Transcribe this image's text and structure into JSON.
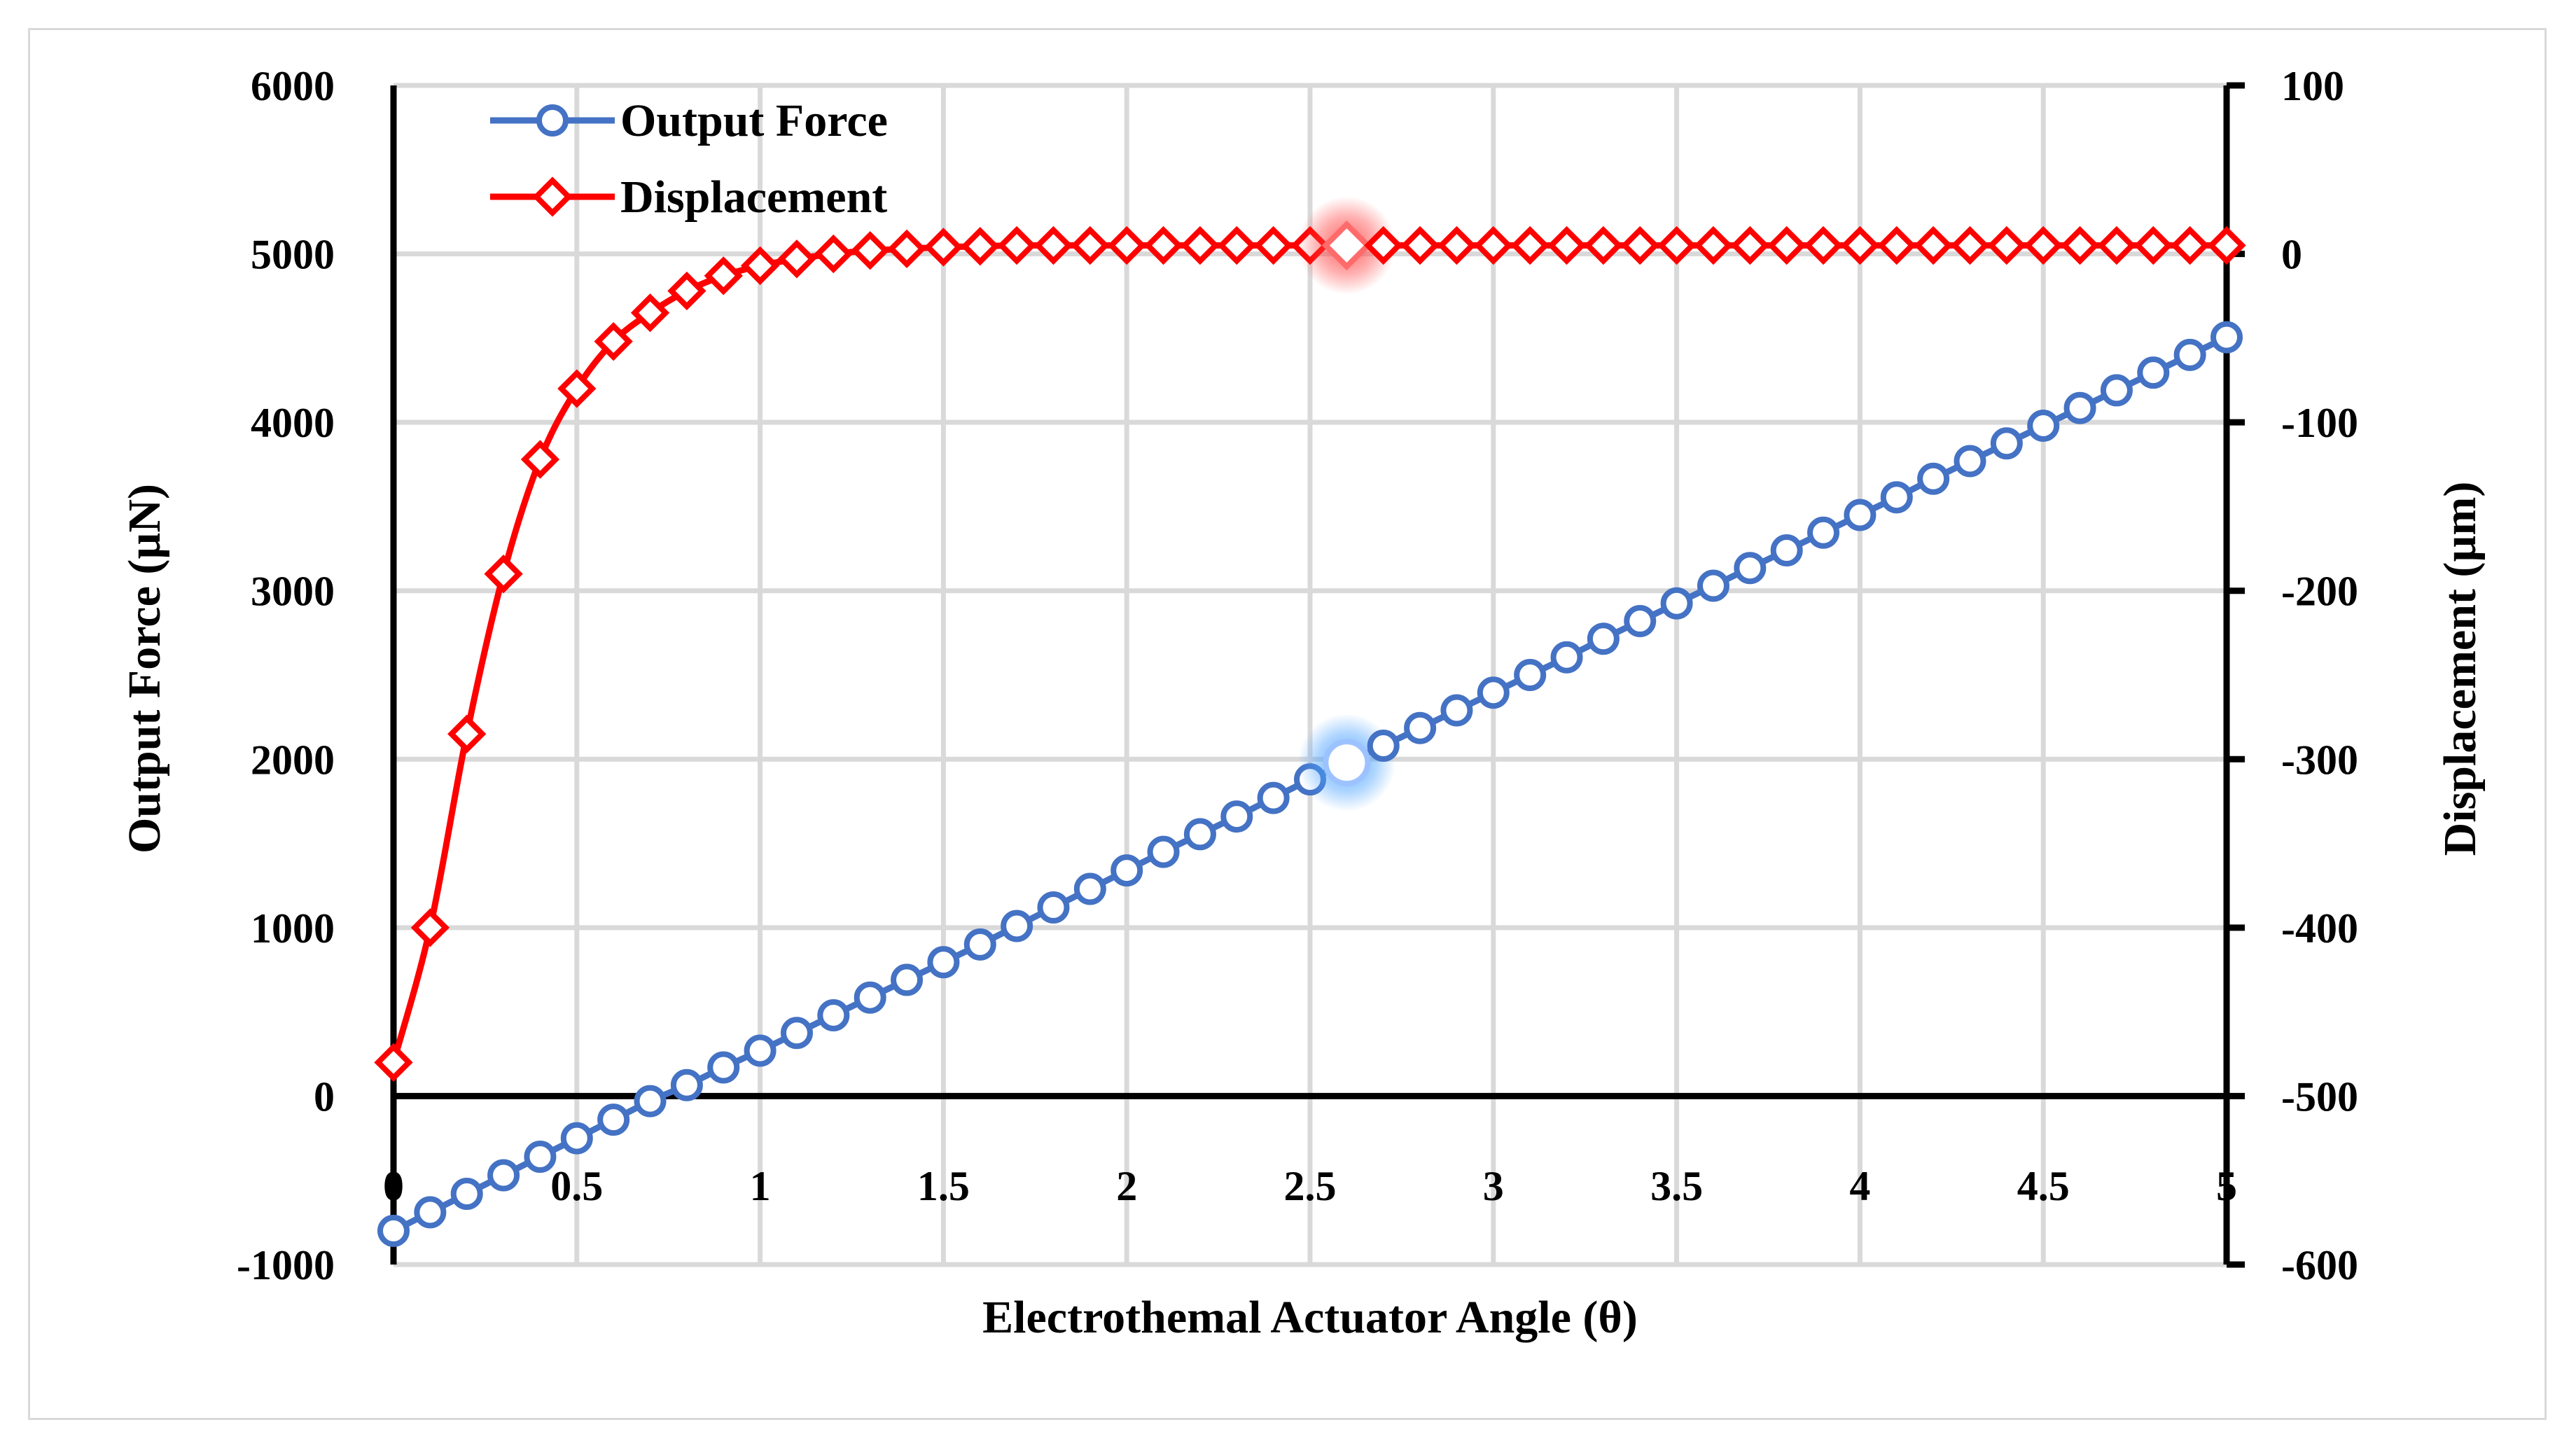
{
  "chart_data": {
    "type": "line",
    "title": "",
    "xlabel": "Electrothemal Actuator Angle (θ)",
    "ylabel": "Output Force (µN)",
    "y2label": "Displacement (µm)",
    "xlim": [
      0,
      5
    ],
    "ylim": [
      -1000,
      6000
    ],
    "y2lim": [
      -600,
      100
    ],
    "x_ticks": [
      "0",
      "0.5",
      "1",
      "1.5",
      "2",
      "2.5",
      "3",
      "3.5",
      "4",
      "4.5",
      "5"
    ],
    "y_ticks": [
      "-1000",
      "0",
      "1000",
      "2000",
      "3000",
      "4000",
      "5000",
      "6000"
    ],
    "y2_ticks": [
      "-600",
      "-500",
      "-400",
      "-300",
      "-200",
      "-100",
      "0",
      "100"
    ],
    "grid": true,
    "legend_position": "top-left",
    "x": [
      0,
      0.1,
      0.2,
      0.3,
      0.4,
      0.5,
      0.6,
      0.7,
      0.8,
      0.9,
      1.0,
      1.1,
      1.2,
      1.3,
      1.4,
      1.5,
      1.6,
      1.7,
      1.8,
      1.9,
      2.0,
      2.1,
      2.2,
      2.3,
      2.4,
      2.5,
      2.6,
      2.7,
      2.8,
      2.9,
      3.0,
      3.1,
      3.2,
      3.3,
      3.4,
      3.5,
      3.6,
      3.7,
      3.8,
      3.9,
      4.0,
      4.1,
      4.2,
      4.3,
      4.4,
      4.5,
      4.6,
      4.7,
      4.8,
      4.9,
      5.0
    ],
    "series": [
      {
        "name": "Output Force",
        "axis": "left",
        "color": "#4472c4",
        "marker": "circle",
        "values": [
          -800,
          -690,
          -580,
          -470,
          -360,
          -250,
          -140,
          -30,
          65,
          170,
          270,
          375,
          480,
          585,
          690,
          795,
          900,
          1010,
          1120,
          1230,
          1340,
          1450,
          1555,
          1660,
          1770,
          1880,
          1980,
          2080,
          2185,
          2290,
          2395,
          2500,
          2605,
          2715,
          2820,
          2925,
          3030,
          3135,
          3240,
          3345,
          3450,
          3555,
          3665,
          3770,
          3875,
          3980,
          4085,
          4190,
          4295,
          4400,
          4505
        ],
        "highlight_index": 26
      },
      {
        "name": "Displacement",
        "axis": "right",
        "color": "#ff0000",
        "marker": "diamond",
        "values": [
          -480,
          -400,
          -285,
          -190,
          -122,
          -80,
          -52,
          -35,
          -22,
          -13,
          -7,
          -3,
          0,
          2,
          3,
          4,
          4.5,
          5,
          5,
          5,
          5,
          5,
          5,
          5,
          5,
          5,
          5,
          5,
          5,
          5,
          5,
          5,
          5,
          5,
          5,
          5,
          5,
          5,
          5,
          5,
          5,
          5,
          5,
          5,
          5,
          5,
          5,
          5,
          5,
          5,
          5
        ],
        "highlight_index": 26
      }
    ]
  }
}
